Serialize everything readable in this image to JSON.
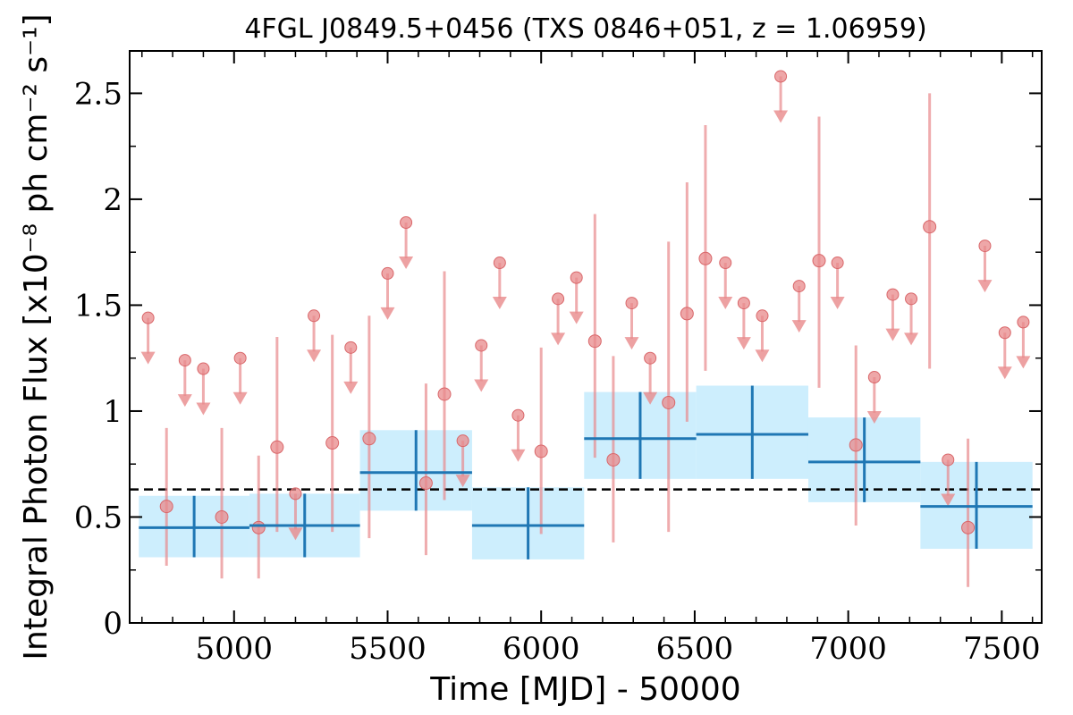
{
  "chart_data": {
    "type": "scatter",
    "title": "4FGL J0849.5+0456 (TXS 0846+051, z = 1.06959)",
    "xlabel": "Time [MJD] - 50000",
    "ylabel": "Integral Photon Flux [x10⁻⁸ ph cm⁻² s⁻¹]",
    "xlim": [
      4660,
      7630
    ],
    "ylim": [
      0,
      2.7
    ],
    "xticks": [
      "5000",
      "5500",
      "6000",
      "6500",
      "7000",
      "7500"
    ],
    "yticks": [
      "0",
      "0.5",
      "1",
      "1.5",
      "2",
      "2.5"
    ],
    "mean_flux": 0.63,
    "colors": {
      "points": "#e8898b",
      "bins_line": "#1f77b4",
      "bins_fill": "#cdeefd",
      "mean_line": "#000000"
    },
    "series": [
      {
        "type": "detections",
        "points": [
          {
            "x": 4780,
            "y": 0.55,
            "lo": 0.27,
            "hi": 0.92
          },
          {
            "x": 4960,
            "y": 0.5,
            "lo": 0.21,
            "hi": 0.92
          },
          {
            "x": 5080,
            "y": 0.45,
            "lo": 0.21,
            "hi": 0.79
          },
          {
            "x": 5140,
            "y": 0.83,
            "lo": 0.43,
            "hi": 1.35
          },
          {
            "x": 5320,
            "y": 0.85,
            "lo": 0.43,
            "hi": 1.36
          },
          {
            "x": 5440,
            "y": 0.87,
            "lo": 0.4,
            "hi": 1.45
          },
          {
            "x": 5625,
            "y": 0.66,
            "lo": 0.32,
            "hi": 1.13
          },
          {
            "x": 5685,
            "y": 1.08,
            "lo": 0.58,
            "hi": 1.66
          },
          {
            "x": 6000,
            "y": 0.81,
            "lo": 0.42,
            "hi": 1.3
          },
          {
            "x": 6175,
            "y": 1.33,
            "lo": 0.78,
            "hi": 1.93
          },
          {
            "x": 6235,
            "y": 0.77,
            "lo": 0.38,
            "hi": 1.26
          },
          {
            "x": 6415,
            "y": 1.04,
            "lo": 0.43,
            "hi": 1.8
          },
          {
            "x": 6475,
            "y": 1.46,
            "lo": 0.95,
            "hi": 2.08
          },
          {
            "x": 6535,
            "y": 1.72,
            "lo": 1.19,
            "hi": 2.35
          },
          {
            "x": 6905,
            "y": 1.71,
            "lo": 1.11,
            "hi": 2.39
          },
          {
            "x": 7025,
            "y": 0.84,
            "lo": 0.46,
            "hi": 1.31
          },
          {
            "x": 7265,
            "y": 1.87,
            "lo": 1.2,
            "hi": 2.5
          },
          {
            "x": 7390,
            "y": 0.45,
            "lo": 0.17,
            "hi": 0.87
          }
        ]
      },
      {
        "type": "upper_limits",
        "points": [
          {
            "x": 4720,
            "y": 1.44
          },
          {
            "x": 4840,
            "y": 1.24
          },
          {
            "x": 4900,
            "y": 1.2
          },
          {
            "x": 5020,
            "y": 1.25
          },
          {
            "x": 5200,
            "y": 0.61
          },
          {
            "x": 5260,
            "y": 1.45
          },
          {
            "x": 5380,
            "y": 1.3
          },
          {
            "x": 5500,
            "y": 1.65
          },
          {
            "x": 5560,
            "y": 1.89
          },
          {
            "x": 5745,
            "y": 0.86
          },
          {
            "x": 5805,
            "y": 1.31
          },
          {
            "x": 5865,
            "y": 1.7
          },
          {
            "x": 5925,
            "y": 0.98
          },
          {
            "x": 6055,
            "y": 1.53
          },
          {
            "x": 6115,
            "y": 1.63
          },
          {
            "x": 6295,
            "y": 1.51
          },
          {
            "x": 6355,
            "y": 1.25
          },
          {
            "x": 6600,
            "y": 1.7
          },
          {
            "x": 6660,
            "y": 1.51
          },
          {
            "x": 6720,
            "y": 1.45
          },
          {
            "x": 6780,
            "y": 2.58
          },
          {
            "x": 6840,
            "y": 1.59
          },
          {
            "x": 6965,
            "y": 1.7
          },
          {
            "x": 7085,
            "y": 1.16
          },
          {
            "x": 7145,
            "y": 1.55
          },
          {
            "x": 7205,
            "y": 1.53
          },
          {
            "x": 7325,
            "y": 0.77
          },
          {
            "x": 7445,
            "y": 1.78
          },
          {
            "x": 7510,
            "y": 1.37
          },
          {
            "x": 7570,
            "y": 1.42
          }
        ]
      },
      {
        "type": "binned",
        "bins": [
          {
            "x0": 4690,
            "x1": 5050,
            "y": 0.45,
            "lo": 0.31,
            "hi": 0.6
          },
          {
            "x0": 5050,
            "x1": 5410,
            "y": 0.46,
            "lo": 0.31,
            "hi": 0.61
          },
          {
            "x0": 5410,
            "x1": 5775,
            "y": 0.71,
            "lo": 0.53,
            "hi": 0.91
          },
          {
            "x0": 5775,
            "x1": 6140,
            "y": 0.46,
            "lo": 0.3,
            "hi": 0.64
          },
          {
            "x0": 6140,
            "x1": 6505,
            "y": 0.87,
            "lo": 0.68,
            "hi": 1.09
          },
          {
            "x0": 6505,
            "x1": 6870,
            "y": 0.89,
            "lo": 0.68,
            "hi": 1.12
          },
          {
            "x0": 6870,
            "x1": 7235,
            "y": 0.76,
            "lo": 0.57,
            "hi": 0.97
          },
          {
            "x0": 7235,
            "x1": 7600,
            "y": 0.55,
            "lo": 0.35,
            "hi": 0.76
          }
        ]
      }
    ]
  }
}
